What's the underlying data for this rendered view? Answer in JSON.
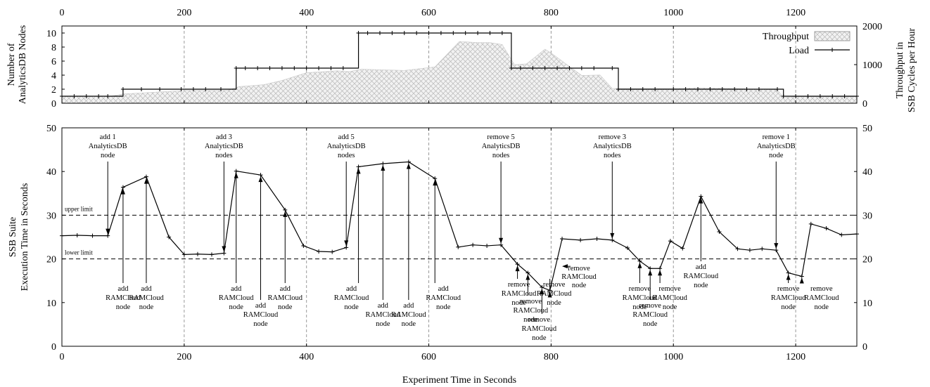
{
  "chart_data": [
    {
      "type": "line",
      "panel": "top",
      "x_top_ticks": [
        0,
        200,
        400,
        600,
        800,
        1000,
        1200
      ],
      "ylabel_left": [
        "Number of",
        "AnalyticsDB Nodes"
      ],
      "ylabel_right": [
        "Throughput in",
        "SSB Cycles per Hour"
      ],
      "ylim_left": [
        0,
        11
      ],
      "yticks_left": [
        0,
        2,
        4,
        6,
        8,
        10
      ],
      "ylim_right": [
        0,
        2000
      ],
      "yticks_right": [
        0,
        1000,
        2000
      ],
      "legend": {
        "position": "top-right",
        "entries": [
          "Throughput",
          "Load"
        ]
      },
      "series": [
        {
          "name": "Load",
          "axis": "left",
          "style": "step-line-with-markers",
          "x": [
            0,
            20,
            40,
            60,
            75,
            100,
            130,
            160,
            195,
            215,
            235,
            260,
            285,
            300,
            320,
            340,
            360,
            380,
            400,
            420,
            440,
            460,
            485,
            500,
            520,
            540,
            560,
            580,
            600,
            620,
            640,
            660,
            680,
            700,
            720,
            735,
            750,
            770,
            790,
            810,
            830,
            850,
            870,
            900,
            910,
            930,
            950,
            970,
            1000,
            1020,
            1040,
            1060,
            1080,
            1100,
            1120,
            1140,
            1170,
            1180,
            1200,
            1220,
            1240,
            1260,
            1280,
            1300
          ],
          "values": [
            1,
            1,
            1,
            1,
            1,
            2,
            2,
            2,
            2,
            2,
            2,
            2,
            5,
            5,
            5,
            5,
            5,
            5,
            5,
            5,
            5,
            5,
            10,
            10,
            10,
            10,
            10,
            10,
            10,
            10,
            10,
            10,
            10,
            10,
            10,
            5,
            5,
            5,
            5,
            5,
            5,
            5,
            5,
            5,
            2,
            2,
            2,
            2,
            2,
            2,
            2,
            2,
            2,
            2,
            2,
            2,
            2,
            1,
            1,
            1,
            1,
            1,
            1,
            1
          ]
        },
        {
          "name": "Throughput",
          "axis": "right",
          "style": "hatched-area",
          "x": [
            0,
            80,
            100,
            200,
            270,
            290,
            330,
            360,
            400,
            450,
            470,
            490,
            560,
            610,
            650,
            680,
            700,
            720,
            740,
            760,
            790,
            800,
            850,
            880,
            900,
            1000,
            1040,
            1080,
            1120,
            1170,
            1180,
            1200,
            1300
          ],
          "values": [
            180,
            180,
            240,
            330,
            330,
            430,
            480,
            590,
            790,
            840,
            820,
            880,
            850,
            940,
            1600,
            1570,
            1570,
            1520,
            1000,
            1020,
            1400,
            1300,
            720,
            730,
            380,
            380,
            400,
            390,
            370,
            350,
            150,
            170,
            170
          ]
        }
      ]
    },
    {
      "type": "line",
      "panel": "bottom",
      "xlabel": "Experiment Time in Seconds",
      "ylabel": [
        "SSB Suite",
        "Execution Time in Seconds"
      ],
      "xlim": [
        0,
        1300
      ],
      "xticks": [
        0,
        200,
        400,
        600,
        800,
        1000,
        1200
      ],
      "ylim": [
        0,
        50
      ],
      "yticks": [
        0,
        10,
        20,
        30,
        40,
        50
      ],
      "grid": "vertical dashed at x ticks",
      "reference_lines": [
        {
          "label": "upper limit",
          "y": 30
        },
        {
          "label": "lower limit",
          "y": 20
        }
      ],
      "series": [
        {
          "name": "",
          "x": [
            0,
            25,
            50,
            75,
            100,
            138,
            175,
            200,
            222,
            245,
            265,
            285,
            325,
            365,
            395,
            420,
            442,
            465,
            485,
            525,
            567,
            610,
            648,
            672,
            695,
            718,
            745,
            762,
            785,
            798,
            818,
            848,
            875,
            900,
            925,
            945,
            962,
            978,
            995,
            1015,
            1045,
            1075,
            1105,
            1125,
            1145,
            1168,
            1188,
            1210,
            1225,
            1250,
            1275,
            1300
          ],
          "values": [
            25.3,
            25.4,
            25.3,
            25.3,
            36.4,
            38.8,
            25.0,
            21.0,
            21.1,
            21.0,
            21.3,
            40.1,
            39.2,
            31.2,
            23.0,
            21.7,
            21.6,
            22.6,
            41.1,
            41.8,
            42.2,
            38.4,
            22.7,
            23.2,
            23.0,
            23.2,
            18.8,
            16.8,
            13.5,
            12.8,
            24.6,
            24.3,
            24.6,
            24.3,
            22.5,
            19.5,
            17.8,
            17.8,
            24.1,
            22.4,
            34.3,
            26.2,
            22.3,
            22.0,
            22.3,
            22.0,
            16.8,
            16.0,
            28.0,
            27.0,
            25.5,
            25.7
          ]
        }
      ],
      "annotations": [
        {
          "text": [
            "add 1",
            "AnalyticsDB",
            "node"
          ],
          "x": 75,
          "y": 25.3,
          "dir": "down"
        },
        {
          "text": [
            "add 3",
            "AnalyticsDB",
            "nodes"
          ],
          "x": 265,
          "y": 21.3,
          "dir": "down"
        },
        {
          "text": [
            "add 5",
            "AnalyticsDB",
            "nodes"
          ],
          "x": 465,
          "y": 22.6,
          "dir": "down"
        },
        {
          "text": [
            "remove 5",
            "AnalyticsDB",
            "nodes"
          ],
          "x": 718,
          "y": 23.2,
          "dir": "down"
        },
        {
          "text": [
            "remove 3",
            "AnalyticsDB",
            "nodes"
          ],
          "x": 900,
          "y": 24.3,
          "dir": "down"
        },
        {
          "text": [
            "remove 1",
            "AnalyticsDB",
            "node"
          ],
          "x": 1168,
          "y": 22.0,
          "dir": "down"
        },
        {
          "text": [
            "add",
            "RAMCloud",
            "node"
          ],
          "x": 100,
          "y": 36.4,
          "dir": "up"
        },
        {
          "text": [
            "add",
            "RAMCloud",
            "node"
          ],
          "x": 138,
          "y": 38.8,
          "dir": "up"
        },
        {
          "text": [
            "add",
            "RAMCloud",
            "node"
          ],
          "x": 285,
          "y": 40.1,
          "dir": "up"
        },
        {
          "text": [
            "add",
            "RAMCloud",
            "node"
          ],
          "x": 325,
          "y": 39.2,
          "dir": "up"
        },
        {
          "text": [
            "add",
            "RAMCloud",
            "node"
          ],
          "x": 365,
          "y": 31.2,
          "dir": "up"
        },
        {
          "text": [
            "add",
            "RAMCloud",
            "node"
          ],
          "x": 485,
          "y": 41.1,
          "dir": "up"
        },
        {
          "text": [
            "add",
            "RAMCloud",
            "node"
          ],
          "x": 525,
          "y": 41.8,
          "dir": "up"
        },
        {
          "text": [
            "add",
            "RAMCloud",
            "node"
          ],
          "x": 567,
          "y": 42.2,
          "dir": "up"
        },
        {
          "text": [
            "add",
            "RAMCloud",
            "node"
          ],
          "x": 610,
          "y": 38.4,
          "dir": "up"
        },
        {
          "text": [
            "remove",
            "RAMCloud",
            "node"
          ],
          "x": 745,
          "y": 18.8,
          "dir": "up"
        },
        {
          "text": [
            "remove",
            "RAMCloud",
            "node"
          ],
          "x": 762,
          "y": 16.8,
          "dir": "up"
        },
        {
          "text": [
            "remove",
            "RAMCloud",
            "node"
          ],
          "x": 785,
          "y": 13.5,
          "dir": "up"
        },
        {
          "text": [
            "remove",
            "RAMCloud",
            "node"
          ],
          "x": 798,
          "y": 12.8,
          "dir": "up"
        },
        {
          "text": [
            "remove",
            "RAMCloud",
            "node"
          ],
          "x": 818,
          "y": 17.5,
          "dir": "left"
        },
        {
          "text": [
            "remove",
            "RAMCloud",
            "node"
          ],
          "x": 945,
          "y": 19.5,
          "dir": "up"
        },
        {
          "text": [
            "remove",
            "RAMCloud",
            "node"
          ],
          "x": 962,
          "y": 17.8,
          "dir": "up"
        },
        {
          "text": [
            "remove",
            "RAMCloud",
            "node"
          ],
          "x": 978,
          "y": 17.8,
          "dir": "up"
        },
        {
          "text": [
            "add",
            "RAMCloud",
            "node"
          ],
          "x": 1045,
          "y": 34.3,
          "dir": "up"
        },
        {
          "text": [
            "remove",
            "RAMCloud",
            "node"
          ],
          "x": 1188,
          "y": 16.8,
          "dir": "up"
        },
        {
          "text": [
            "remove",
            "RAMCloud",
            "node"
          ],
          "x": 1210,
          "y": 16.0,
          "dir": "up"
        }
      ]
    }
  ]
}
